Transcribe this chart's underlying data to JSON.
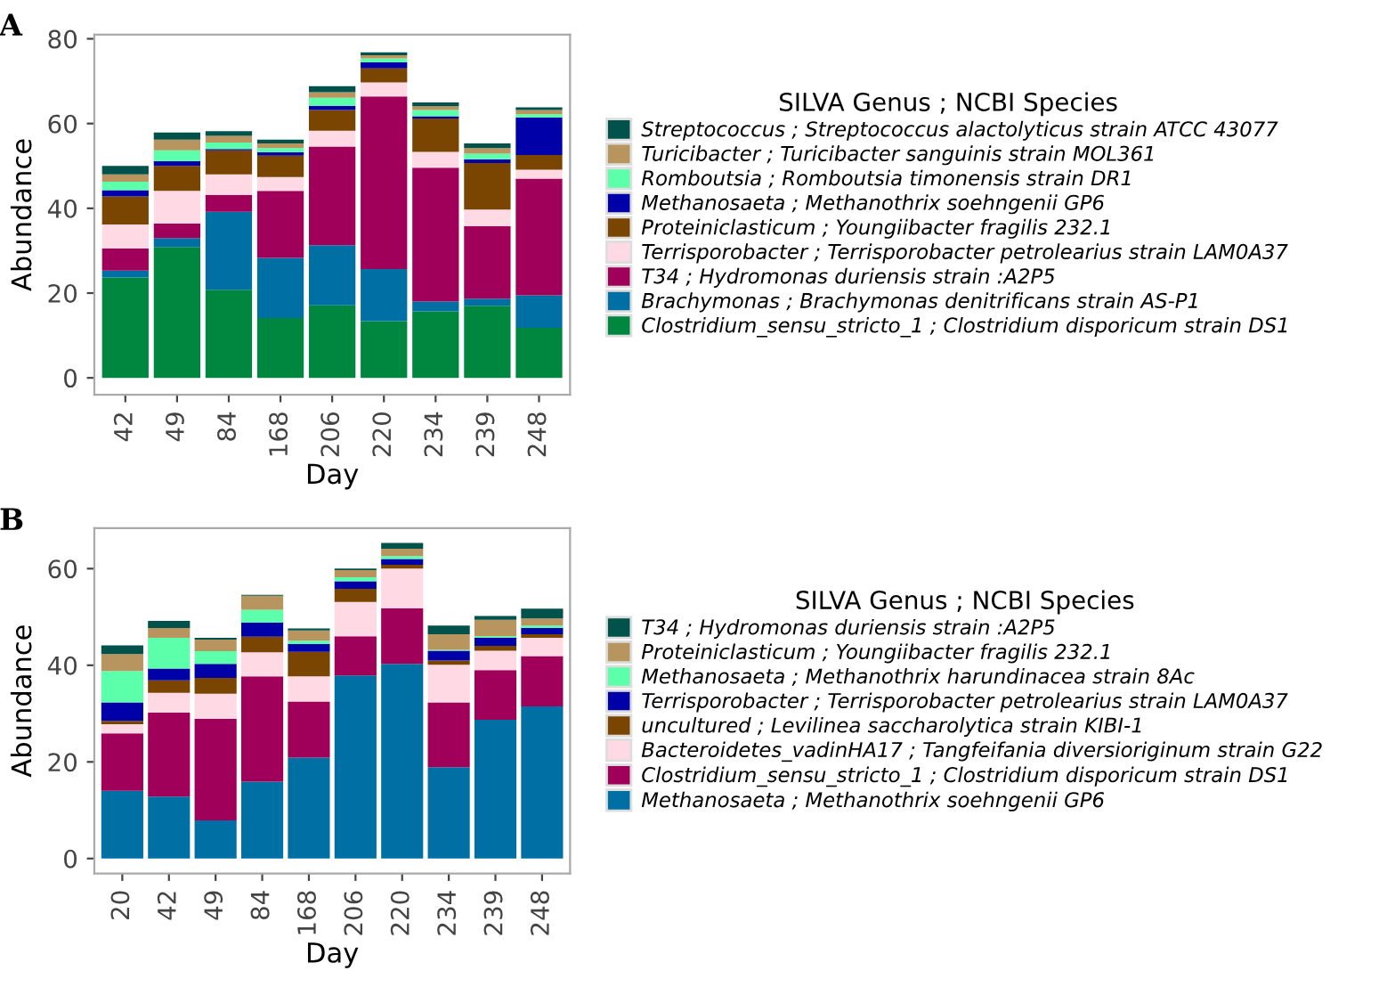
{
  "chart_data": [
    {
      "type": "bar",
      "title": "A",
      "stacked": true,
      "xlabel": "Day",
      "ylabel": "Abundance",
      "legend_title": "SILVA Genus ; NCBI Species",
      "legend": "right",
      "grid": false,
      "categories": [
        "42",
        "49",
        "84",
        "168",
        "206",
        "220",
        "234",
        "239",
        "248"
      ],
      "ylim": [
        -4,
        81
      ],
      "yticks": [
        0,
        20,
        40,
        60,
        80
      ],
      "series": [
        {
          "name": "Clostridium_sensu_stricto_1 ; Clostridium disporicum strain DS1",
          "color": "#00873f",
          "values": [
            23.7,
            30.9,
            20.8,
            14.1,
            17.1,
            13.4,
            15.7,
            17.0,
            11.8
          ]
        },
        {
          "name": "Brachymonas ; Brachymonas denitrificans strain AS-P1",
          "color": "#0070a4",
          "values": [
            1.6,
            2.1,
            18.4,
            14.2,
            14.2,
            12.3,
            2.3,
            1.7,
            7.7
          ]
        },
        {
          "name": "T34 ; Hydromonas duriensis strain :A2P5",
          "color": "#a0005a",
          "values": [
            5.2,
            3.4,
            4.0,
            15.8,
            23.3,
            40.7,
            31.6,
            17.1,
            27.5
          ]
        },
        {
          "name": "Terrisporobacter ; Terrisporobacter petrolearius strain LAM0A37",
          "color": "#ffd9e3",
          "values": [
            5.7,
            7.7,
            4.8,
            3.3,
            3.7,
            3.3,
            3.7,
            3.9,
            2.1
          ]
        },
        {
          "name": "Proteiniclasticum ; Youngiibacter fragilis 232.1",
          "color": "#7a4500",
          "values": [
            6.6,
            5.9,
            5.7,
            5.0,
            4.9,
            3.3,
            7.9,
            11.0,
            3.5
          ]
        },
        {
          "name": "Methanosaeta ; Methanothrix soehngenii GP6",
          "color": "#0000a8",
          "values": [
            1.5,
            1.1,
            0.3,
            0.8,
            1.0,
            1.5,
            0.5,
            0.9,
            8.8
          ]
        },
        {
          "name": "Romboutsia ; Romboutsia timonensis strain DR1",
          "color": "#5cffaa",
          "values": [
            2.0,
            2.6,
            1.5,
            1.0,
            1.9,
            0.9,
            1.5,
            1.3,
            0.8
          ]
        },
        {
          "name": "Turicibacter ; Turicibacter sanguinis strain MOL361",
          "color": "#b8955f",
          "values": [
            1.7,
            2.5,
            1.6,
            1.1,
            1.3,
            0.7,
            0.9,
            1.3,
            1.0
          ]
        },
        {
          "name": "Streptococcus ; Streptococcus alactolyticus strain ATCC 43077",
          "color": "#00524a",
          "values": [
            2.0,
            1.7,
            1.1,
            0.9,
            1.4,
            0.7,
            0.9,
            1.1,
            0.6
          ]
        }
      ]
    },
    {
      "type": "bar",
      "title": "B",
      "stacked": true,
      "xlabel": "Day",
      "ylabel": "Abundance",
      "legend_title": "SILVA Genus ; NCBI Species",
      "legend": "right",
      "grid": false,
      "categories": [
        "20",
        "42",
        "49",
        "84",
        "168",
        "206",
        "220",
        "234",
        "239",
        "248"
      ],
      "ylim": [
        -3.1,
        68.4
      ],
      "yticks": [
        0,
        20,
        40,
        60
      ],
      "series": [
        {
          "name": "Methanosaeta ; Methanothrix soehngenii GP6",
          "color": "#0070a4",
          "values": [
            14.0,
            12.8,
            7.9,
            15.9,
            20.9,
            37.9,
            40.3,
            18.9,
            28.7,
            31.5
          ]
        },
        {
          "name": "Clostridium_sensu_stricto_1 ; Clostridium disporicum strain DS1",
          "color": "#a0005a",
          "values": [
            11.9,
            17.4,
            21.0,
            21.8,
            11.6,
            8.1,
            11.5,
            13.4,
            10.3,
            10.4
          ]
        },
        {
          "name": "Bacteroidetes_vadinHA17 ; Tangfeifania diversioriginum strain G22",
          "color": "#ffd9e3",
          "values": [
            1.9,
            4.1,
            5.2,
            5.0,
            5.2,
            7.1,
            8.2,
            7.8,
            4.0,
            3.8
          ]
        },
        {
          "name": "uncultured ; Levilinea saccharolytica strain KIBI-1",
          "color": "#7a4500",
          "values": [
            0.7,
            2.6,
            3.3,
            3.2,
            5.1,
            2.7,
            0.8,
            0.9,
            1.0,
            0.7
          ]
        },
        {
          "name": "Terrisporobacter ; Terrisporobacter petrolearius strain LAM0A37",
          "color": "#0000a8",
          "values": [
            3.8,
            2.4,
            2.9,
            2.9,
            1.6,
            1.6,
            1.2,
            2.0,
            1.7,
            1.3
          ]
        },
        {
          "name": "Methanosaeta ; Methanothrix harundinacea strain 8Ac",
          "color": "#5cffaa",
          "values": [
            6.5,
            6.4,
            2.6,
            2.7,
            0.7,
            0.8,
            0.6,
            0.2,
            0.3,
            0.5
          ]
        },
        {
          "name": "Proteiniclasticum ; Youngiibacter fragilis 232.1",
          "color": "#b8955f",
          "values": [
            3.5,
            2.0,
            2.4,
            2.9,
            2.1,
            1.5,
            1.5,
            3.2,
            3.4,
            1.5
          ]
        },
        {
          "name": "T34 ; Hydromonas duriensis strain :A2P5",
          "color": "#00524a",
          "values": [
            1.8,
            1.5,
            0.4,
            0.2,
            0.4,
            0.3,
            1.2,
            1.8,
            0.8,
            2.0
          ]
        }
      ]
    }
  ]
}
